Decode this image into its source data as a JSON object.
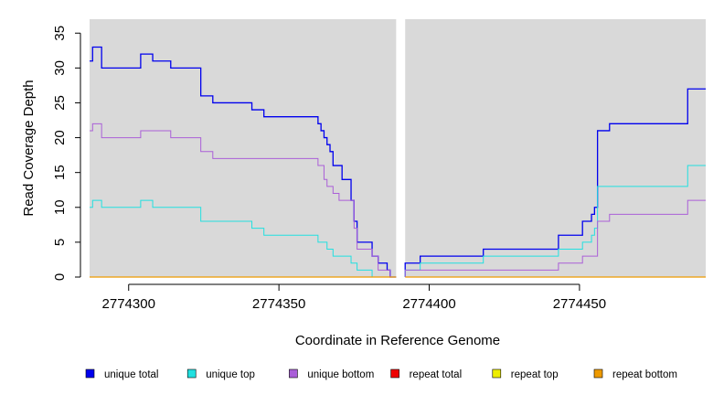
{
  "chart_data": {
    "type": "line",
    "title": "",
    "xlabel": "Coordinate in Reference Genome",
    "ylabel": "Read Coverage Depth",
    "xlim": [
      2774287,
      2774492
    ],
    "ylim": [
      0,
      37
    ],
    "x_ticks": [
      2774300,
      2774350,
      2774400,
      2774450
    ],
    "y_ticks": [
      0,
      5,
      10,
      15,
      20,
      25,
      30,
      35
    ],
    "gap": [
      2774389,
      2774392
    ],
    "background": "#d9d9d9",
    "legend_position": "bottom",
    "series": [
      {
        "name": "unique total",
        "color": "#0000ee",
        "width": 1.3,
        "points": [
          [
            2774287,
            31
          ],
          [
            2774288,
            31
          ],
          [
            2774288,
            33
          ],
          [
            2774291,
            33
          ],
          [
            2774291,
            30
          ],
          [
            2774304,
            30
          ],
          [
            2774304,
            32
          ],
          [
            2774308,
            32
          ],
          [
            2774308,
            31
          ],
          [
            2774314,
            31
          ],
          [
            2774314,
            30
          ],
          [
            2774324,
            30
          ],
          [
            2774324,
            26
          ],
          [
            2774328,
            26
          ],
          [
            2774328,
            25
          ],
          [
            2774341,
            25
          ],
          [
            2774341,
            24
          ],
          [
            2774345,
            24
          ],
          [
            2774345,
            23
          ],
          [
            2774363,
            23
          ],
          [
            2774363,
            22
          ],
          [
            2774364,
            22
          ],
          [
            2774364,
            21
          ],
          [
            2774365,
            21
          ],
          [
            2774365,
            20
          ],
          [
            2774366,
            20
          ],
          [
            2774366,
            19
          ],
          [
            2774367,
            19
          ],
          [
            2774367,
            18
          ],
          [
            2774368,
            18
          ],
          [
            2774368,
            16
          ],
          [
            2774371,
            16
          ],
          [
            2774371,
            14
          ],
          [
            2774374,
            14
          ],
          [
            2774374,
            11
          ],
          [
            2774375,
            11
          ],
          [
            2774375,
            8
          ],
          [
            2774376,
            8
          ],
          [
            2774376,
            5
          ],
          [
            2774381,
            5
          ],
          [
            2774381,
            3
          ],
          [
            2774383,
            3
          ],
          [
            2774383,
            2
          ],
          [
            2774386,
            2
          ],
          [
            2774386,
            1
          ],
          [
            2774387,
            1
          ],
          [
            2774387,
            0
          ],
          [
            2774389,
            0
          ]
        ]
      },
      {
        "name": "unique total",
        "color": "#0000ee",
        "width": 1.3,
        "points": [
          [
            2774392,
            0
          ],
          [
            2774392,
            2
          ],
          [
            2774397,
            2
          ],
          [
            2774397,
            3
          ],
          [
            2774418,
            3
          ],
          [
            2774418,
            4
          ],
          [
            2774443,
            4
          ],
          [
            2774443,
            6
          ],
          [
            2774451,
            6
          ],
          [
            2774451,
            8
          ],
          [
            2774454,
            8
          ],
          [
            2774454,
            9
          ],
          [
            2774455,
            9
          ],
          [
            2774455,
            10
          ],
          [
            2774456,
            10
          ],
          [
            2774456,
            21
          ],
          [
            2774460,
            21
          ],
          [
            2774460,
            22
          ],
          [
            2774486,
            22
          ],
          [
            2774486,
            27
          ],
          [
            2774492,
            27
          ]
        ]
      },
      {
        "name": "unique top",
        "color": "#22e0e0",
        "width": 1,
        "points": [
          [
            2774287,
            10
          ],
          [
            2774288,
            10
          ],
          [
            2774288,
            11
          ],
          [
            2774291,
            11
          ],
          [
            2774291,
            10
          ],
          [
            2774304,
            10
          ],
          [
            2774304,
            11
          ],
          [
            2774308,
            11
          ],
          [
            2774308,
            10
          ],
          [
            2774324,
            10
          ],
          [
            2774324,
            8
          ],
          [
            2774341,
            8
          ],
          [
            2774341,
            7
          ],
          [
            2774345,
            7
          ],
          [
            2774345,
            6
          ],
          [
            2774363,
            6
          ],
          [
            2774363,
            5
          ],
          [
            2774366,
            5
          ],
          [
            2774366,
            4
          ],
          [
            2774368,
            4
          ],
          [
            2774368,
            3
          ],
          [
            2774374,
            3
          ],
          [
            2774374,
            2
          ],
          [
            2774376,
            2
          ],
          [
            2774376,
            1
          ],
          [
            2774381,
            1
          ],
          [
            2774381,
            0
          ],
          [
            2774389,
            0
          ]
        ]
      },
      {
        "name": "unique top",
        "color": "#22e0e0",
        "width": 1,
        "points": [
          [
            2774392,
            0
          ],
          [
            2774392,
            1
          ],
          [
            2774397,
            1
          ],
          [
            2774397,
            2
          ],
          [
            2774418,
            2
          ],
          [
            2774418,
            3
          ],
          [
            2774443,
            3
          ],
          [
            2774443,
            4
          ],
          [
            2774451,
            4
          ],
          [
            2774451,
            5
          ],
          [
            2774454,
            5
          ],
          [
            2774454,
            6
          ],
          [
            2774455,
            6
          ],
          [
            2774455,
            7
          ],
          [
            2774456,
            7
          ],
          [
            2774456,
            13
          ],
          [
            2774486,
            13
          ],
          [
            2774486,
            16
          ],
          [
            2774492,
            16
          ]
        ]
      },
      {
        "name": "unique bottom",
        "color": "#aa5fd8",
        "width": 1,
        "points": [
          [
            2774287,
            21
          ],
          [
            2774288,
            21
          ],
          [
            2774288,
            22
          ],
          [
            2774291,
            22
          ],
          [
            2774291,
            20
          ],
          [
            2774304,
            20
          ],
          [
            2774304,
            21
          ],
          [
            2774314,
            21
          ],
          [
            2774314,
            20
          ],
          [
            2774324,
            20
          ],
          [
            2774324,
            18
          ],
          [
            2774328,
            18
          ],
          [
            2774328,
            17
          ],
          [
            2774363,
            17
          ],
          [
            2774363,
            16
          ],
          [
            2774365,
            16
          ],
          [
            2774365,
            14
          ],
          [
            2774366,
            14
          ],
          [
            2774366,
            13
          ],
          [
            2774368,
            13
          ],
          [
            2774368,
            12
          ],
          [
            2774370,
            12
          ],
          [
            2774370,
            11
          ],
          [
            2774375,
            11
          ],
          [
            2774375,
            7
          ],
          [
            2774376,
            7
          ],
          [
            2774376,
            4
          ],
          [
            2774381,
            4
          ],
          [
            2774381,
            3
          ],
          [
            2774383,
            3
          ],
          [
            2774383,
            1
          ],
          [
            2774387,
            1
          ],
          [
            2774387,
            0
          ],
          [
            2774389,
            0
          ]
        ]
      },
      {
        "name": "unique bottom",
        "color": "#aa5fd8",
        "width": 1,
        "points": [
          [
            2774392,
            0
          ],
          [
            2774392,
            1
          ],
          [
            2774443,
            1
          ],
          [
            2774443,
            2
          ],
          [
            2774451,
            2
          ],
          [
            2774451,
            3
          ],
          [
            2774456,
            3
          ],
          [
            2774456,
            8
          ],
          [
            2774460,
            8
          ],
          [
            2774460,
            9
          ],
          [
            2774486,
            9
          ],
          [
            2774486,
            11
          ],
          [
            2774492,
            11
          ]
        ]
      },
      {
        "name": "repeat bottom",
        "color": "#ee9a00",
        "width": 1.2,
        "points": [
          [
            2774287,
            0
          ],
          [
            2774389,
            0
          ]
        ]
      },
      {
        "name": "repeat bottom",
        "color": "#ee9a00",
        "width": 1.2,
        "points": [
          [
            2774392,
            0
          ],
          [
            2774492,
            0
          ]
        ]
      }
    ],
    "legend": [
      {
        "label": "unique total",
        "color": "#0000ee"
      },
      {
        "label": "unique top",
        "color": "#22e0e0"
      },
      {
        "label": "unique bottom",
        "color": "#aa5fd8"
      },
      {
        "label": "repeat total",
        "color": "#ee0000"
      },
      {
        "label": "repeat top",
        "color": "#eeee00"
      },
      {
        "label": "repeat bottom",
        "color": "#ee9a00"
      }
    ]
  }
}
